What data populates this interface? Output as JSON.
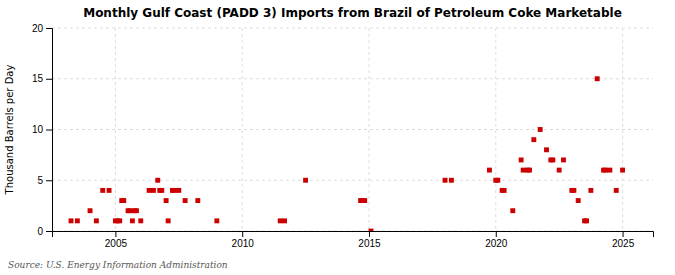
{
  "chart_data": {
    "type": "scatter",
    "title": "Monthly Gulf Coast (PADD 3) Imports from Brazil of Petroleum Coke Marketable",
    "ylabel": "Thousand Barrels per Day",
    "annotations": [
      "Source: U.S. Energy Information Administration"
    ],
    "color": "#cc0000",
    "marker": "square",
    "grid": true,
    "xlim": [
      2002.5,
      2026.2
    ],
    "ylim": [
      0,
      20
    ],
    "xticks": [
      2005,
      2010,
      2015,
      2020,
      2025
    ],
    "yticks": [
      0,
      5,
      10,
      15,
      20
    ],
    "x": [
      2003.25,
      2003.5,
      2004.0,
      2004.25,
      2004.5,
      2004.75,
      2005.0,
      2005.08,
      2005.17,
      2005.25,
      2005.33,
      2005.5,
      2005.58,
      2005.67,
      2005.75,
      2005.83,
      2006.0,
      2006.33,
      2006.5,
      2006.67,
      2006.75,
      2006.83,
      2007.0,
      2007.08,
      2007.25,
      2007.33,
      2007.5,
      2007.75,
      2008.25,
      2009.0,
      2011.5,
      2011.67,
      2012.5,
      2014.67,
      2014.75,
      2014.83,
      2015.08,
      2018.0,
      2018.25,
      2019.75,
      2020.0,
      2020.08,
      2020.25,
      2020.33,
      2020.67,
      2021.0,
      2021.08,
      2021.25,
      2021.33,
      2021.5,
      2021.75,
      2022.0,
      2022.17,
      2022.25,
      2022.5,
      2022.67,
      2023.0,
      2023.08,
      2023.25,
      2023.5,
      2023.58,
      2023.75,
      2024.0,
      2024.25,
      2024.33,
      2024.5,
      2024.75,
      2025.0
    ],
    "values": [
      1,
      1,
      2,
      1,
      4,
      4,
      1,
      1,
      1,
      3,
      3,
      2,
      2,
      1,
      2,
      2,
      1,
      4,
      4,
      5,
      4,
      4,
      3,
      1,
      4,
      4,
      4,
      3,
      3,
      1,
      1,
      1,
      5,
      3,
      3,
      3,
      0,
      5,
      5,
      6,
      5,
      5,
      4,
      4,
      2,
      7,
      6,
      6,
      6,
      9,
      10,
      8,
      7,
      7,
      6,
      7,
      4,
      4,
      3,
      1,
      1,
      4,
      15,
      6,
      6,
      6,
      4,
      6
    ]
  }
}
